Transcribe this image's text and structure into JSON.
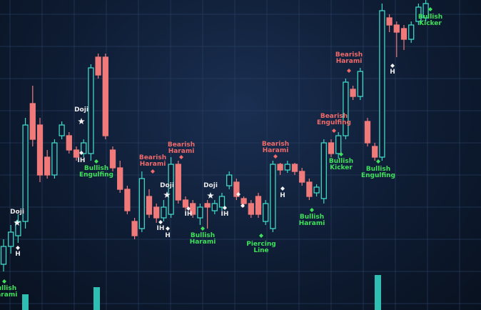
{
  "chart_data": {
    "type": "candlestick",
    "open": [
      70,
      95,
      110,
      130,
      295,
      265,
      220,
      195,
      250,
      250,
      230,
      225,
      225,
      360,
      360,
      230,
      205,
      175,
      130,
      120,
      165,
      150,
      135,
      140,
      210,
      160,
      155,
      135,
      155,
      145,
      150,
      180,
      185,
      162,
      155,
      165,
      130,
      120,
      210,
      202,
      210,
      200,
      185,
      170,
      162,
      240,
      225,
      250,
      315,
      305,
      270,
      235,
      220,
      415,
      405,
      400,
      385,
      410,
      415
    ],
    "high": [
      105,
      125,
      140,
      275,
      320,
      275,
      230,
      245,
      270,
      255,
      235,
      245,
      350,
      365,
      365,
      235,
      215,
      180,
      135,
      200,
      175,
      155,
      160,
      220,
      215,
      165,
      160,
      155,
      160,
      160,
      170,
      200,
      190,
      165,
      160,
      170,
      160,
      215,
      212,
      215,
      212,
      205,
      190,
      182,
      245,
      245,
      255,
      330,
      320,
      345,
      275,
      240,
      435,
      420,
      410,
      405,
      410,
      435,
      440
    ],
    "low": [
      60,
      85,
      100,
      120,
      235,
      185,
      190,
      190,
      245,
      225,
      215,
      220,
      215,
      330,
      245,
      200,
      170,
      140,
      105,
      115,
      135,
      128,
      130,
      135,
      155,
      145,
      135,
      125,
      120,
      140,
      145,
      175,
      160,
      150,
      135,
      135,
      125,
      115,
      195,
      198,
      195,
      180,
      160,
      165,
      155,
      220,
      218,
      245,
      300,
      300,
      235,
      215,
      215,
      395,
      360,
      370,
      380,
      405,
      410
    ],
    "close": [
      95,
      115,
      130,
      265,
      245,
      195,
      195,
      240,
      265,
      230,
      220,
      240,
      345,
      335,
      250,
      205,
      175,
      145,
      110,
      190,
      140,
      135,
      150,
      210,
      160,
      150,
      140,
      150,
      150,
      155,
      165,
      195,
      165,
      155,
      140,
      140,
      155,
      210,
      202,
      210,
      200,
      185,
      165,
      178,
      240,
      225,
      250,
      325,
      305,
      340,
      240,
      220,
      425,
      405,
      395,
      385,
      405,
      430,
      435
    ],
    "up_color": "#3fd6c6",
    "down_color": "#f07a7a",
    "ylim": [
      6,
      440
    ],
    "annotations": [
      {
        "text": "Doji",
        "color": "#e8e8e8"
      },
      {
        "text": "H",
        "color": "#e8e8e8"
      },
      {
        "text": "Bullish Harami",
        "color": "#3fe05a"
      },
      {
        "text": "Doji",
        "color": "#e8e8e8"
      },
      {
        "text": "IH",
        "color": "#e8e8e8"
      },
      {
        "text": "Bullish Engulfing",
        "color": "#3fe05a"
      },
      {
        "text": "Bearish Harami",
        "color": "#f06a6a"
      },
      {
        "text": "Bearish Harami",
        "color": "#f06a6a"
      },
      {
        "text": "Doji",
        "color": "#e8e8e8"
      },
      {
        "text": "IH",
        "color": "#e8e8e8"
      },
      {
        "text": "H",
        "color": "#e8e8e8"
      },
      {
        "text": "IH",
        "color": "#e8e8e8"
      },
      {
        "text": "Bullish Harami",
        "color": "#3fe05a"
      },
      {
        "text": "Doji",
        "color": "#e8e8e8"
      },
      {
        "text": "IH",
        "color": "#e8e8e8"
      },
      {
        "text": "Piercing Line",
        "color": "#3fe05a"
      },
      {
        "text": "Bearish Harami",
        "color": "#f06a6a"
      },
      {
        "text": "H",
        "color": "#e8e8e8"
      },
      {
        "text": "Bullish Harami",
        "color": "#3fe05a"
      },
      {
        "text": "Bearish Engulfing",
        "color": "#f06a6a"
      },
      {
        "text": "Bullish Kicker",
        "color": "#3fe05a"
      },
      {
        "text": "Bearish Harami",
        "color": "#f06a6a"
      },
      {
        "text": "Bullish Engulfing",
        "color": "#3fe05a"
      },
      {
        "text": "H",
        "color": "#e8e8e8"
      },
      {
        "text": "Bullish Kicker",
        "color": "#3fe05a"
      }
    ]
  }
}
